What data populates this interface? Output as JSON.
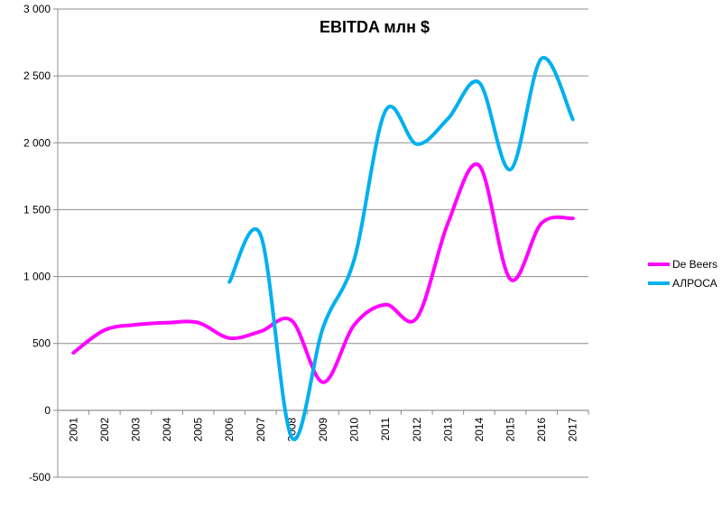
{
  "chart_data": {
    "type": "line",
    "title": "EBITDA млн $",
    "xlabel": "",
    "ylabel": "",
    "ylim": [
      -500,
      3000
    ],
    "ytick_labels": [
      "-500",
      "0",
      "500",
      "1 000",
      "1 500",
      "2 000",
      "2 500",
      "3 000"
    ],
    "yticks": [
      -500,
      0,
      500,
      1000,
      1500,
      2000,
      2500,
      3000
    ],
    "categories": [
      "2001",
      "2002",
      "2003",
      "2004",
      "2005",
      "2006",
      "2007",
      "2008",
      "2009",
      "2010",
      "2011",
      "2012",
      "2013",
      "2014",
      "2015",
      "2016",
      "2017"
    ],
    "grid": true,
    "legend_position": "right",
    "series": [
      {
        "name": "De Beers",
        "color": "#ff00ff",
        "values": [
          430,
          600,
          640,
          655,
          655,
          540,
          590,
          670,
          210,
          640,
          790,
          690,
          1400,
          1830,
          980,
          1400,
          1435
        ]
      },
      {
        "name": "АЛРОСА",
        "color": "#00b0f0",
        "values": [
          null,
          null,
          null,
          null,
          null,
          960,
          1310,
          -205,
          620,
          1130,
          2240,
          1990,
          2180,
          2450,
          1800,
          2630,
          2175
        ]
      }
    ]
  }
}
